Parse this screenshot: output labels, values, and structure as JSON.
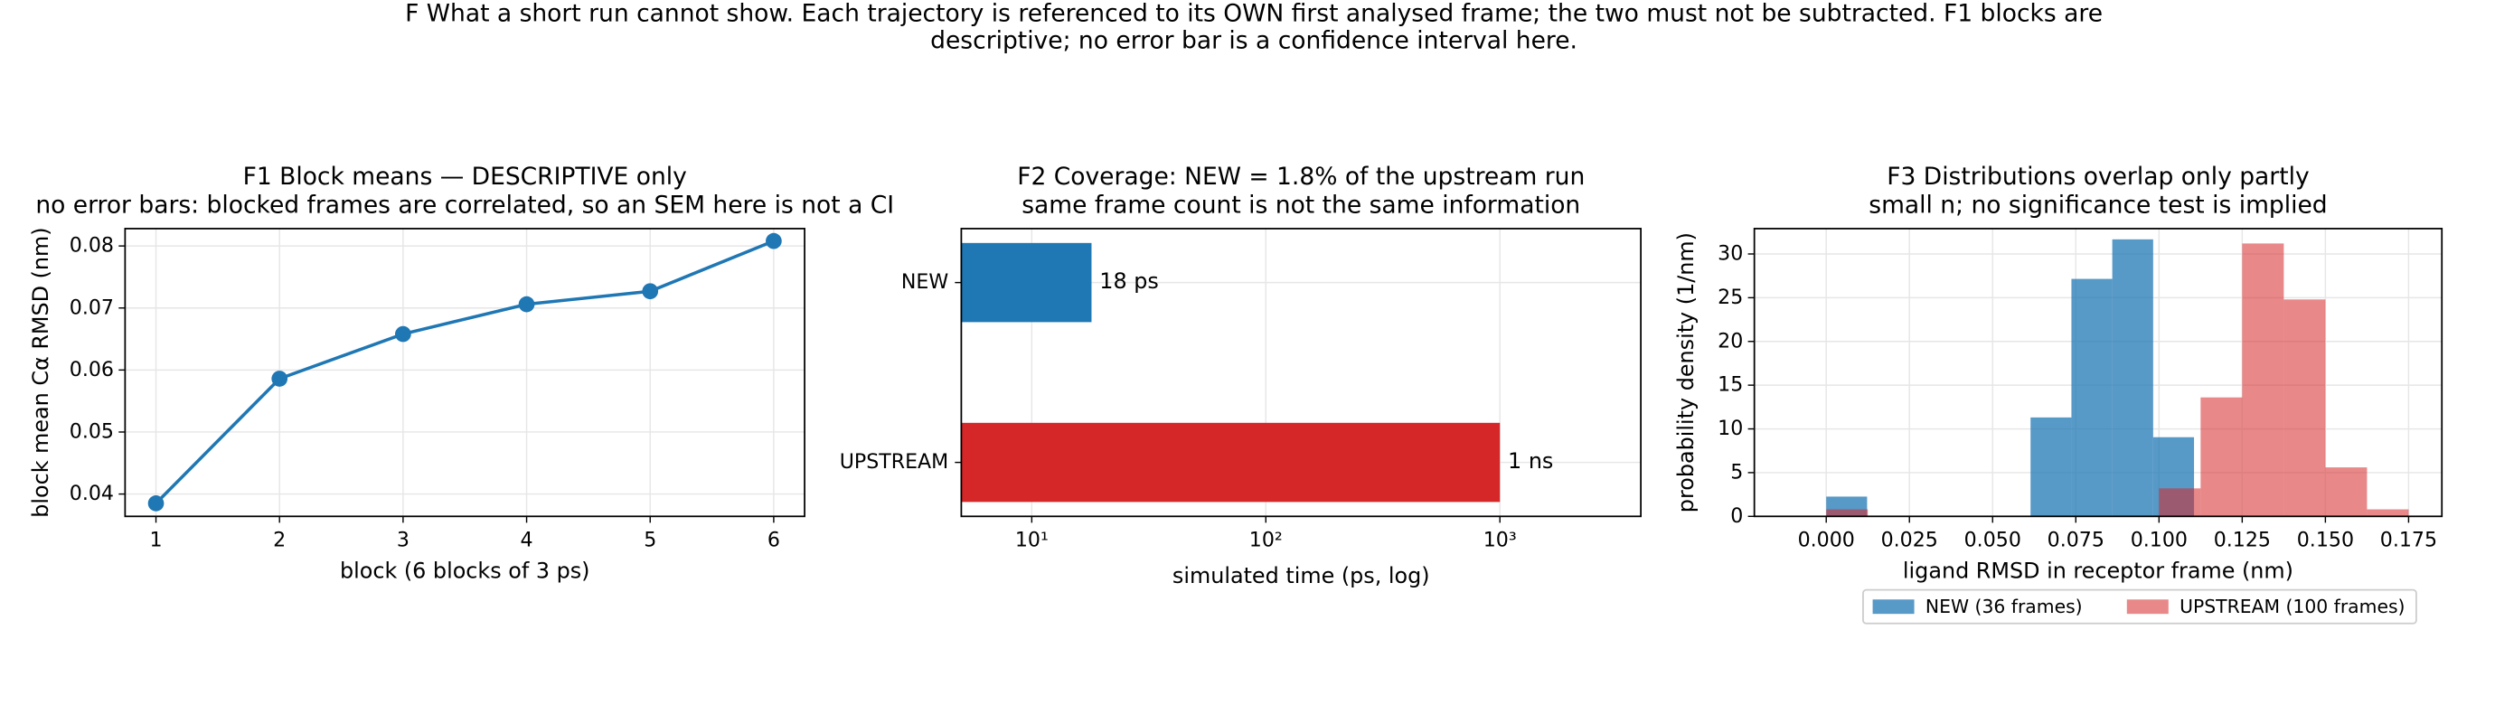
{
  "suptitle": [
    "F  What a short run cannot show. Each trajectory is referenced to its OWN first analysed frame; the two must not be subtracted. F1 blocks are",
    "descriptive; no error bar is a confidence interval here."
  ],
  "chart_data": [
    {
      "type": "line",
      "title": "F1  Block means — DESCRIPTIVE only",
      "subtitle": "no error bars: blocked frames are correlated, so an SEM here is not a CI",
      "xlabel": "block (6 blocks of 3 ps)",
      "ylabel": "block mean Cα RMSD (nm)",
      "x": [
        1,
        2,
        3,
        4,
        5,
        6
      ],
      "values": [
        0.0385,
        0.0586,
        0.0658,
        0.0706,
        0.0727,
        0.0808
      ],
      "color": "#1f77b4",
      "xlim": [
        0.75,
        6.25
      ],
      "xticks": [
        1,
        2,
        3,
        4,
        5,
        6
      ],
      "ylim": [
        0.0364,
        0.0828
      ],
      "yticks": [
        0.04,
        0.05,
        0.06,
        0.07,
        0.08
      ],
      "grid": true
    },
    {
      "type": "bar",
      "orientation": "horizontal",
      "title": "F2  Coverage: NEW = 1.8% of the upstream run",
      "subtitle": "same frame count is not the same information",
      "xlabel": "simulated time (ps, log)",
      "categories": [
        "NEW",
        "UPSTREAM"
      ],
      "values": [
        18,
        1000
      ],
      "value_labels": [
        "18 ps",
        "1 ns"
      ],
      "colors": [
        "#1f77b4",
        "#d62728"
      ],
      "xscale": "log",
      "xlim": [
        5,
        4000
      ],
      "xticks": [
        {
          "value": 10,
          "label": "10¹"
        },
        {
          "value": 100,
          "label": "10²"
        },
        {
          "value": 1000,
          "label": "10³"
        }
      ],
      "grid": true
    },
    {
      "type": "histogram",
      "title": "F3  Distributions overlap only partly",
      "subtitle": "small n; no significance test is implied",
      "xlabel": "ligand RMSD in receptor frame (nm)",
      "ylabel": "probability density (1/nm)",
      "series": [
        {
          "name": "NEW (36 frames)",
          "color": "#1f77b4",
          "alpha": 0.75,
          "bins": [
            0,
            0.01228,
            0.02456,
            0.03684,
            0.04912,
            0.0614,
            0.07368,
            0.08596,
            0.09824,
            0.11052
          ],
          "values": [
            2.26,
            0,
            0,
            0,
            0,
            11.31,
            27.15,
            31.67,
            9.05
          ]
        },
        {
          "name": "UPSTREAM (100 frames)",
          "color": "#d62728",
          "alpha": 0.55,
          "bins": [
            0,
            0.0125,
            0.025,
            0.0375,
            0.05,
            0.0625,
            0.075,
            0.0875,
            0.1,
            0.1125,
            0.125,
            0.1375,
            0.15,
            0.1625,
            0.175
          ],
          "values": [
            0.8,
            0,
            0,
            0,
            0,
            0,
            0,
            0,
            3.2,
            13.6,
            31.2,
            24.8,
            5.6,
            0.8
          ]
        }
      ],
      "xlim": [
        -0.0216,
        0.185
      ],
      "xticks": [
        {
          "value": 0,
          "label": "0.000"
        },
        0.025,
        {
          "value": 0.05,
          "label": "0.050"
        },
        0.075,
        {
          "value": 0.1,
          "label": "0.100"
        },
        0.125,
        {
          "value": 0.15,
          "label": "0.150"
        },
        0.175
      ],
      "ylim": [
        0,
        32.9
      ],
      "yticks": [
        0,
        5,
        10,
        15,
        20,
        25,
        30
      ],
      "grid": true,
      "legend": "below"
    }
  ]
}
